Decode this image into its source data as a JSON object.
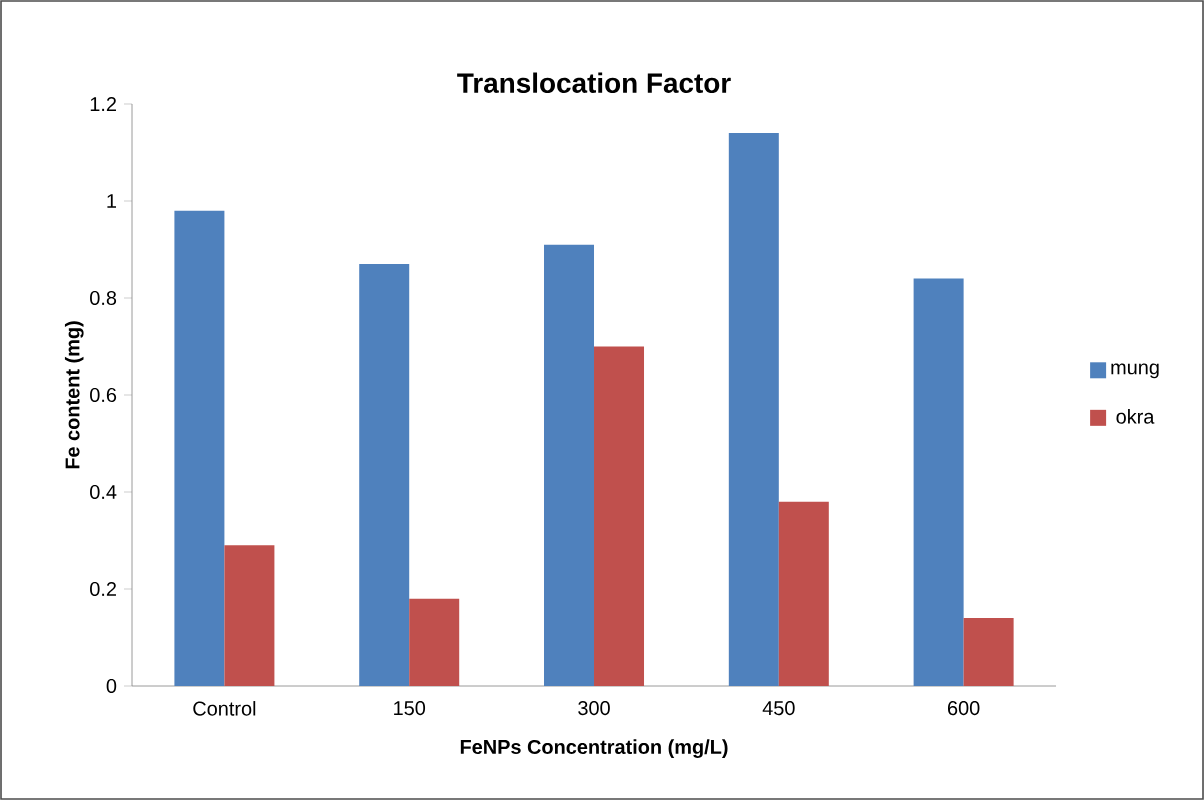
{
  "chart_data": {
    "type": "bar",
    "title": "Translocation Factor",
    "xlabel": "FeNPs Concentration (mg/L)",
    "ylabel": "Fe content (mg)",
    "categories": [
      "Control",
      "150",
      "300",
      "450",
      "600"
    ],
    "series": [
      {
        "name": "mung",
        "color": "#4f81bd",
        "values": [
          0.98,
          0.87,
          0.91,
          1.14,
          0.84
        ]
      },
      {
        "name": "okra",
        "color": "#c0504d",
        "values": [
          0.29,
          0.18,
          0.7,
          0.38,
          0.14
        ]
      }
    ],
    "ylim": [
      0,
      1.2
    ],
    "yticks": [
      0,
      0.2,
      0.4,
      0.6,
      0.8,
      1,
      1.2
    ],
    "grid": false,
    "legend": "right"
  }
}
